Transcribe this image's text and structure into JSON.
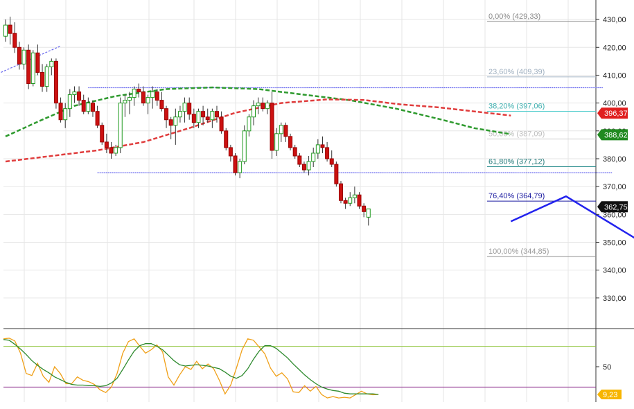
{
  "chart_data": [
    {
      "type": "candlestick",
      "title": "",
      "ylim": [
        320,
        437
      ],
      "y_ticks": [
        "330,00",
        "340,00",
        "350,00",
        "360,00",
        "370,00",
        "380,00",
        "390,00",
        "400,00",
        "410,00",
        "420,00",
        "430,00"
      ],
      "y_tick_values": [
        330,
        340,
        350,
        360,
        370,
        380,
        390,
        400,
        410,
        420,
        430
      ],
      "candles": [
        [
          424,
          430,
          422,
          428
        ],
        [
          428,
          431,
          421,
          425
        ],
        [
          425,
          429,
          418,
          420
        ],
        [
          420,
          422,
          412,
          414
        ],
        [
          414,
          420,
          412,
          419
        ],
        [
          419,
          421,
          405,
          407
        ],
        [
          407,
          419,
          406,
          418
        ],
        [
          418,
          421,
          410,
          411
        ],
        [
          411,
          414,
          404,
          406
        ],
        [
          406,
          414,
          404,
          413
        ],
        [
          413,
          416,
          410,
          415
        ],
        [
          415,
          416,
          398,
          400
        ],
        [
          400,
          402,
          393,
          394
        ],
        [
          394,
          400,
          391,
          398
        ],
        [
          398,
          405,
          395,
          403
        ],
        [
          403,
          406,
          400,
          404
        ],
        [
          404,
          406,
          399,
          401
        ],
        [
          401,
          403,
          396,
          397
        ],
        [
          397,
          402,
          396,
          400
        ],
        [
          400,
          401,
          395,
          397
        ],
        [
          397,
          399,
          391,
          392
        ],
        [
          392,
          393,
          385,
          386
        ],
        [
          386,
          389,
          382,
          384
        ],
        [
          384,
          386,
          380,
          382
        ],
        [
          382,
          385,
          381,
          384
        ],
        [
          384,
          402,
          382,
          400
        ],
        [
          400,
          403,
          395,
          401
        ],
        [
          401,
          404,
          396,
          402
        ],
        [
          402,
          406,
          399,
          405
        ],
        [
          405,
          407,
          402,
          404
        ],
        [
          404,
          406,
          399,
          400
        ],
        [
          400,
          403,
          396,
          402
        ],
        [
          402,
          406,
          398,
          404
        ],
        [
          404,
          405,
          399,
          401
        ],
        [
          401,
          404,
          397,
          398
        ],
        [
          398,
          399,
          391,
          394
        ],
        [
          394,
          395,
          387,
          392
        ],
        [
          392,
          398,
          385,
          395
        ],
        [
          395,
          399,
          393,
          397
        ],
        [
          397,
          402,
          393,
          400
        ],
        [
          400,
          402,
          394,
          396
        ],
        [
          396,
          398,
          391,
          393
        ],
        [
          393,
          398,
          391,
          397
        ],
        [
          397,
          399,
          392,
          395
        ],
        [
          395,
          398,
          393,
          394
        ],
        [
          394,
          398,
          391,
          397
        ],
        [
          397,
          399,
          393,
          395
        ],
        [
          395,
          397,
          389,
          390
        ],
        [
          390,
          391,
          383,
          384
        ],
        [
          384,
          385,
          379,
          381
        ],
        [
          381,
          382,
          374,
          375
        ],
        [
          375,
          380,
          373,
          379
        ],
        [
          379,
          392,
          378,
          390
        ],
        [
          390,
          396,
          388,
          395
        ],
        [
          395,
          401,
          392,
          399
        ],
        [
          399,
          402,
          396,
          400
        ],
        [
          400,
          402,
          397,
          398
        ],
        [
          398,
          401,
          396,
          400
        ],
        [
          400,
          404,
          380,
          383
        ],
        [
          383,
          391,
          381,
          389
        ],
        [
          389,
          393,
          386,
          392
        ],
        [
          392,
          393,
          386,
          388
        ],
        [
          388,
          389,
          383,
          384
        ],
        [
          384,
          385,
          380,
          381
        ],
        [
          381,
          382,
          377,
          378
        ],
        [
          378,
          379,
          375,
          376
        ],
        [
          376,
          381,
          374,
          379
        ],
        [
          379,
          384,
          377,
          382
        ],
        [
          382,
          387,
          380,
          385
        ],
        [
          385,
          388,
          382,
          384
        ],
        [
          384,
          386,
          379,
          380
        ],
        [
          380,
          383,
          377,
          378
        ],
        [
          378,
          379,
          370,
          371
        ],
        [
          371,
          372,
          364,
          365
        ],
        [
          365,
          366,
          362,
          364
        ],
        [
          364,
          368,
          363,
          366
        ],
        [
          366,
          370,
          364,
          367
        ],
        [
          367,
          368,
          362,
          363
        ],
        [
          363,
          364,
          359,
          361
        ],
        [
          359,
          362,
          356,
          362
        ]
      ],
      "sma_green": [
        [
          0,
          388
        ],
        [
          8,
          394
        ],
        [
          15,
          399
        ],
        [
          24,
          402.5
        ],
        [
          35,
          405
        ],
        [
          45,
          405.6
        ],
        [
          55,
          405
        ],
        [
          65,
          403
        ],
        [
          75,
          401
        ],
        [
          85,
          398
        ],
        [
          95,
          394
        ],
        [
          102,
          391
        ],
        [
          110,
          388.8
        ]
      ],
      "sma_red": [
        [
          0,
          379
        ],
        [
          10,
          381
        ],
        [
          20,
          383
        ],
        [
          30,
          386
        ],
        [
          40,
          391
        ],
        [
          50,
          396.5
        ],
        [
          60,
          400
        ],
        [
          70,
          401.3
        ],
        [
          78,
          401.1
        ],
        [
          86,
          399.5
        ],
        [
          94,
          398.5
        ],
        [
          102,
          397
        ],
        [
          110,
          395.5
        ]
      ],
      "channel_top": [
        [
          18,
          405.5
        ],
        [
          130,
          405.5
        ]
      ],
      "channel_bottom": [
        [
          20,
          375
        ],
        [
          132,
          375
        ]
      ],
      "trend_dashed_blue": [
        [
          -1,
          411
        ],
        [
          12,
          420.5
        ]
      ],
      "projection": [
        [
          110,
          357.5
        ],
        [
          122,
          366.5
        ],
        [
          143,
          345.5
        ]
      ],
      "fib_anchor_line": [
        [
          143,
          345.5
        ],
        [
          176,
          429.5
        ]
      ],
      "fibonacci": [
        {
          "label": "0,00% (429,33)",
          "value": 429.33,
          "color": "#888888",
          "text_color": "#888888"
        },
        {
          "label": "23,60% (409,39)",
          "value": 409.39,
          "color": "#a8b8c8",
          "text_color": "#a0b0c0"
        },
        {
          "label": "38,20% (397,06)",
          "value": 397.06,
          "color": "#40c8c8",
          "text_color": "#40b0b0"
        },
        {
          "label": "50,00% (387,09)",
          "value": 387.09,
          "color": "#c8c8c8",
          "text_color": "#c0c0c0"
        },
        {
          "label": "61,80% (377,12)",
          "value": 377.12,
          "color": "#208888",
          "text_color": "#207878"
        },
        {
          "label": "76,40% (364,79)",
          "value": 364.79,
          "color": "#1a1aa0",
          "text_color": "#1a1aa0"
        },
        {
          "label": "100,00% (344,85)",
          "value": 344.85,
          "color": "#909090",
          "text_color": "#999999"
        }
      ],
      "price_badges": [
        {
          "label": "396,37",
          "value": 396.37,
          "bg": "#e02020",
          "fg": "#ffffff"
        },
        {
          "label": "388,62",
          "value": 388.62,
          "bg": "#208a20",
          "fg": "#ffffff"
        },
        {
          "label": "362,75",
          "value": 362.75,
          "bg": "#111111",
          "fg": "#ffffff"
        }
      ],
      "colors": {
        "up_body": "#ffffff",
        "up_border": "#1f9a1f",
        "down_body": "#cc1111",
        "down_border": "#990000",
        "sma_green": "#2e9a2e",
        "sma_red": "#e03c3c",
        "channel": "#6666ee",
        "projection": "#2222ee",
        "grid": "#e6e6e6"
      }
    },
    {
      "type": "line",
      "title": "",
      "ylim": [
        0,
        100
      ],
      "y_ticks": [
        "50"
      ],
      "y_tick_values": [
        50
      ],
      "hlines": [
        {
          "value": 80,
          "color": "#8fc43c"
        },
        {
          "value": 20,
          "color": "#8a2a8a"
        }
      ],
      "series": [
        {
          "values": [
            91,
            92,
            88,
            70,
            40,
            37,
            55,
            36,
            27,
            50,
            40,
            25,
            25,
            35,
            30,
            28,
            24,
            16,
            12,
            20,
            40,
            70,
            87,
            91,
            80,
            70,
            75,
            82,
            72,
            35,
            23,
            38,
            50,
            46,
            58,
            47,
            54,
            47,
            30,
            10,
            23,
            48,
            75,
            91,
            89,
            79,
            69,
            48,
            36,
            41,
            32,
            13,
            12,
            22,
            14,
            21,
            9,
            4,
            6,
            4,
            5,
            4,
            9,
            14,
            10,
            8.7,
            9.23
          ],
          "color": "#f0a018"
        },
        {
          "values": [
            90,
            89,
            83,
            76,
            68,
            59,
            52,
            46,
            41,
            35,
            31,
            27,
            24,
            23,
            23,
            22,
            22,
            21,
            22,
            26,
            33,
            46,
            60,
            73,
            81,
            84,
            84,
            80,
            75,
            67,
            59,
            53,
            51,
            52,
            53,
            52,
            51,
            49,
            47,
            42,
            36,
            33,
            37,
            47,
            61,
            73,
            81,
            81,
            77,
            70,
            63,
            54,
            46,
            38,
            31,
            25,
            20,
            17,
            15,
            14,
            11,
            10,
            10,
            10,
            10,
            10,
            9.23
          ],
          "color": "#2e8a2e"
        }
      ],
      "value_badge": {
        "label": "9,23",
        "bg": "#f7b500",
        "fg": "#000000"
      }
    }
  ]
}
